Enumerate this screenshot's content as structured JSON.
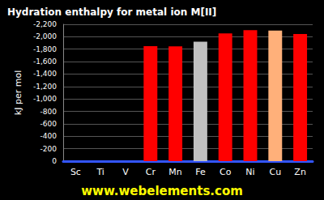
{
  "chart_data": {
    "type": "bar",
    "title": "Hydration enthalpy for metal ion M[II]",
    "categories": [
      "Sc",
      "Ti",
      "V",
      "Cr",
      "Mn",
      "Fe",
      "Co",
      "Ni",
      "Cu",
      "Zn"
    ],
    "values": [
      null,
      null,
      null,
      -1850,
      -1845,
      -1920,
      -2054,
      -2106,
      -2100,
      -2044
    ],
    "colors": [
      "#ff0000",
      "#ff0000",
      "#ff0000",
      "#ff0000",
      "#ff0000",
      "#c0c0c0",
      "#ff0000",
      "#ff0000",
      "#ffb07a",
      "#ff0000"
    ],
    "y_label": "kJ per mol",
    "annotations": [
      "www.webelements.com"
    ],
    "ylim": [
      0,
      -2200
    ],
    "yticks": [
      0,
      -200,
      -400,
      -600,
      -800,
      {
        "value": -1000,
        "label": "-1,000"
      },
      {
        "value": -1200,
        "label": "-1,200"
      },
      {
        "value": -1400,
        "label": "-1,400"
      },
      {
        "value": -1600,
        "label": "-1,600"
      },
      {
        "value": -1800,
        "label": "-1,800"
      },
      {
        "value": -2000,
        "label": "-2,000"
      },
      {
        "value": -2200,
        "label": "-2,200"
      }
    ],
    "grid": true
  }
}
